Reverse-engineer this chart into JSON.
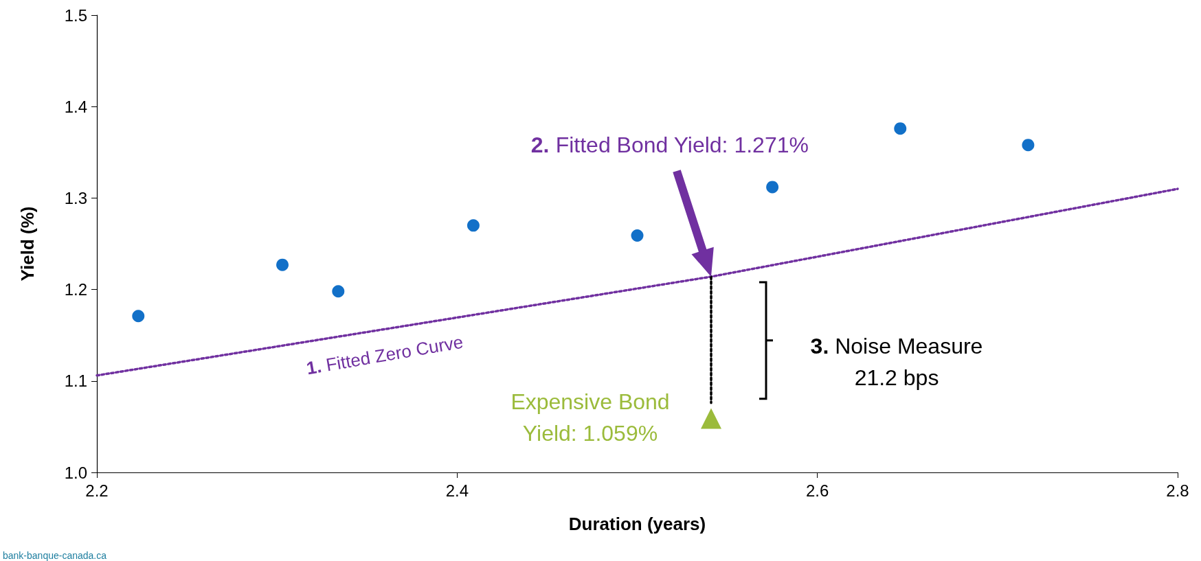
{
  "chart_data": {
    "type": "scatter",
    "xlabel": "Duration (years)",
    "ylabel": "Yield (%)",
    "xlim": [
      2.2,
      2.8
    ],
    "xticks": [
      2.2,
      2.4,
      2.6,
      2.8
    ],
    "ylim": [
      1.0,
      1.5
    ],
    "yticks": [
      {
        "value": 1.0,
        "label": "1.0"
      },
      {
        "value": 1.1,
        "label": "1.1"
      },
      {
        "value": 1.2,
        "label": "1.2"
      },
      {
        "value": 1.3,
        "label": "1.3"
      },
      {
        "value": 1.4,
        "label": "1.4"
      },
      {
        "value": 1.5,
        "label": "1.5"
      }
    ],
    "grid": false,
    "series": [
      {
        "marker": "circle",
        "color": "#1270c8",
        "x": [
          2.223,
          2.303,
          2.334,
          2.409,
          2.5,
          2.575,
          2.646,
          2.717
        ],
        "values": [
          1.171,
          1.227,
          1.198,
          1.27,
          1.259,
          1.312,
          1.376,
          1.358
        ]
      },
      {
        "type": "line",
        "marker": "none",
        "line_style": "dotted",
        "color": "#7030a0",
        "x": [
          2.2,
          2.541,
          2.8
        ],
        "values": [
          1.106,
          1.214,
          1.31
        ]
      },
      {
        "marker": "triangle",
        "color": "#9bbb3b",
        "x": [
          2.541
        ],
        "values": [
          1.059
        ]
      },
      {
        "type": "line",
        "marker": "none",
        "line_style": "dotted",
        "color": "#000000",
        "x": [
          2.541,
          2.541
        ],
        "values": [
          1.214,
          1.076
        ]
      }
    ],
    "annotations": [
      "1. Fitted Zero Curve",
      "2. Fitted Bond Yield: 1.271%",
      "3. Noise Measure\n21.2 bps",
      "Expensive Bond\nYield: 1.059%",
      "bank-banque-canada.ca"
    ]
  }
}
